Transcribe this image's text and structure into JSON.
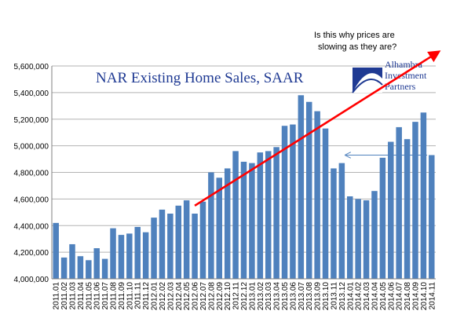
{
  "chart_data": {
    "type": "bar",
    "title": "NAR Existing Home Sales, SAAR",
    "annotation": [
      "Is this why prices are",
      "slowing as they are?"
    ],
    "logo_text": [
      "Alhambra",
      "Investment",
      "Partners"
    ],
    "ylim": [
      4000000,
      5600000
    ],
    "yticks": [
      4000000,
      4200000,
      4400000,
      4600000,
      4800000,
      5000000,
      5200000,
      5400000,
      5600000
    ],
    "ytick_labels": [
      "4,000,000",
      "4,200,000",
      "4,400,000",
      "4,600,000",
      "4,800,000",
      "5,000,000",
      "5,200,000",
      "5,400,000",
      "5,600,000"
    ],
    "categories": [
      "2011.01",
      "2011.02",
      "2011.03",
      "2011.04",
      "2011.05",
      "2011.06",
      "2011.07",
      "2011.08",
      "2011.09",
      "2011.10",
      "2011.11",
      "2011.12",
      "2012.01",
      "2012.02",
      "2012.03",
      "2012.04",
      "2012.05",
      "2012.06",
      "2012.07",
      "2012.08",
      "2012.09",
      "2012.10",
      "2012.11",
      "2012.12",
      "2013.01",
      "2013.02",
      "2013.03",
      "2013.04",
      "2013.05",
      "2013.06",
      "2013.07",
      "2013.08",
      "2013.09",
      "2013.10",
      "2013.11",
      "2013.12",
      "2014.01",
      "2014.02",
      "2014.03",
      "2014.04",
      "2014.05",
      "2014.06",
      "2014.07",
      "2014.08",
      "2014.09",
      "2014.10",
      "2014.11"
    ],
    "xtick_labels": [
      "2011.01",
      "2011.02",
      "2011.03",
      "2011.04",
      "2011.05",
      "2011.06",
      "2011.07",
      "2011.08",
      "2011.09",
      "2011.10",
      "2011.11",
      "2011.12",
      "2012.01",
      "2012.02",
      "2012.03",
      "2012.04",
      "2012.05",
      "2012.06",
      "2012.07",
      "2012.08",
      "2012.09",
      "2012.10",
      "2012.11",
      "2012.12",
      "2013.01",
      "2013.02",
      "2013.03",
      "2013.04",
      "2013.05",
      "2013.06",
      "2013.07",
      "2013.08",
      "2013.09",
      "2013.10",
      "2013.11",
      "2013.12",
      "2014.01",
      "2014.02",
      "2014.03",
      "2014.04",
      "2014.05",
      "2014.06",
      "2014.07",
      "2014.08",
      "2014.09",
      "2014.10",
      "2014.11"
    ],
    "values": [
      4420000,
      4160000,
      4260000,
      4170000,
      4140000,
      4230000,
      4150000,
      4380000,
      4330000,
      4340000,
      4390000,
      4350000,
      4460000,
      4520000,
      4490000,
      4550000,
      4590000,
      4490000,
      4580000,
      4800000,
      4760000,
      4830000,
      4960000,
      4880000,
      4870000,
      4950000,
      4960000,
      4990000,
      5150000,
      5160000,
      5380000,
      5330000,
      5260000,
      5130000,
      4830000,
      4870000,
      4620000,
      4600000,
      4590000,
      4660000,
      4910000,
      5030000,
      5140000,
      5050000,
      5180000,
      5250000,
      4930000
    ],
    "grid": true,
    "bar_color": "#4f81bd",
    "trend_arrow": {
      "color": "#ff0000",
      "from": {
        "x": "2012.06",
        "y": 4550000
      },
      "to": {
        "x": "beyond 2014.11",
        "y": 5700000
      }
    },
    "level_arrow": {
      "color": "#4f81bd",
      "from": {
        "x": "2014.11",
        "y": 4930000
      },
      "to": {
        "x": "2013.12",
        "y": 4930000
      }
    }
  }
}
